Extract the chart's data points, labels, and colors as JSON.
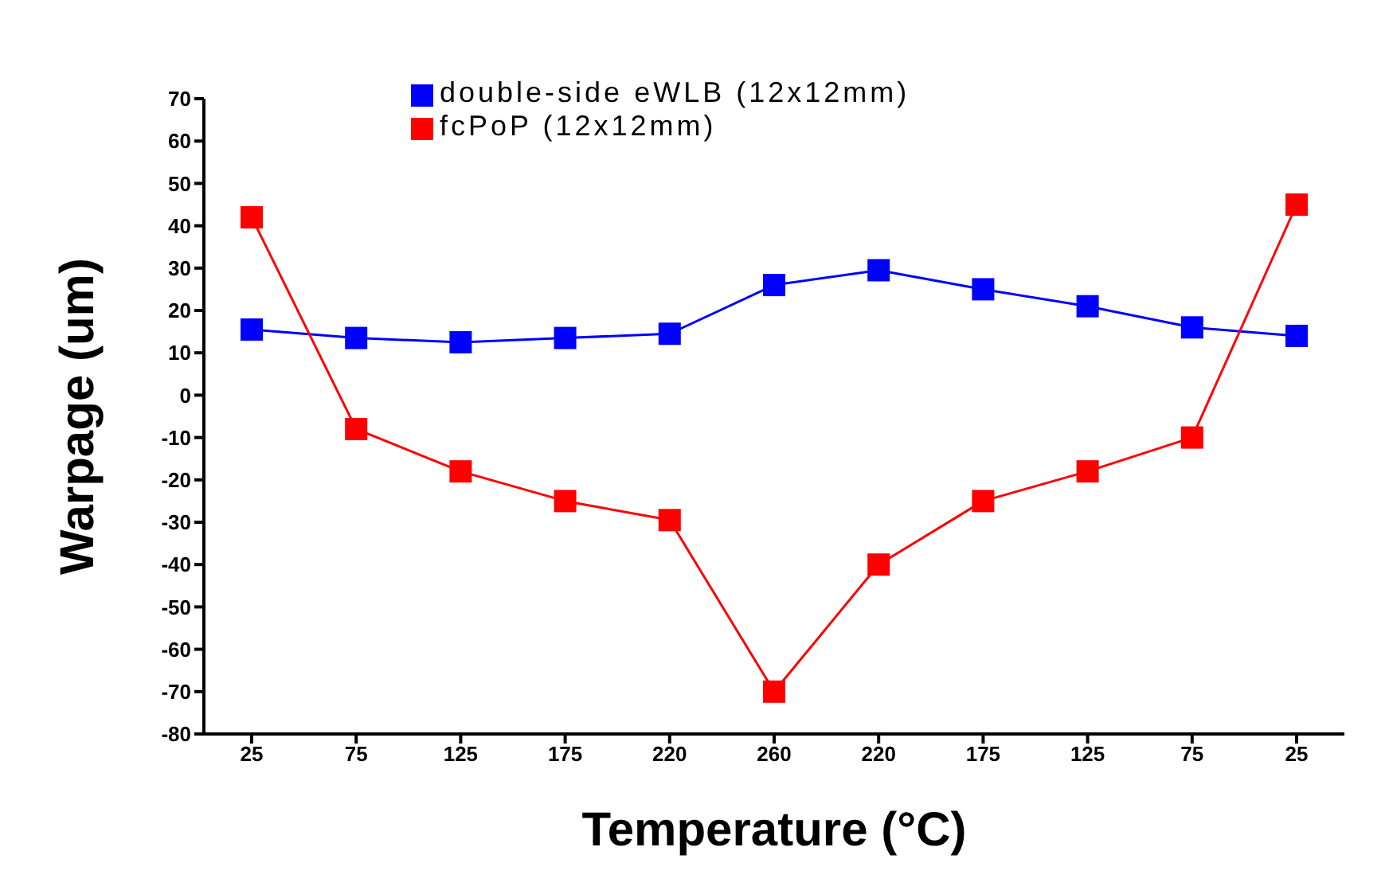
{
  "chart_data": {
    "type": "line",
    "xlabel": "Temperature (°C)",
    "ylabel": "Warpage (um)",
    "categories": [
      "25",
      "75",
      "125",
      "175",
      "220",
      "260",
      "220",
      "175",
      "125",
      "75",
      "25"
    ],
    "series": [
      {
        "name": "double-side eWLB (12x12mm)",
        "color": "#0000ff",
        "values": [
          15.5,
          13.5,
          12.5,
          13.5,
          14.5,
          26,
          29.5,
          25,
          21,
          16,
          14
        ]
      },
      {
        "name": "fcPoP (12x12mm)",
        "color": "#ff0000",
        "values": [
          42,
          -8,
          -18,
          -25,
          -29.5,
          -70,
          -40,
          -25,
          -18,
          -10,
          45
        ]
      }
    ],
    "ylim": [
      -80,
      70
    ],
    "yticks": [
      -80,
      -70,
      -60,
      -50,
      -40,
      -30,
      -20,
      -10,
      0,
      10,
      20,
      30,
      40,
      50,
      60,
      70
    ],
    "grid": false,
    "legend": "top",
    "marker": "square",
    "line_style": "solid"
  }
}
